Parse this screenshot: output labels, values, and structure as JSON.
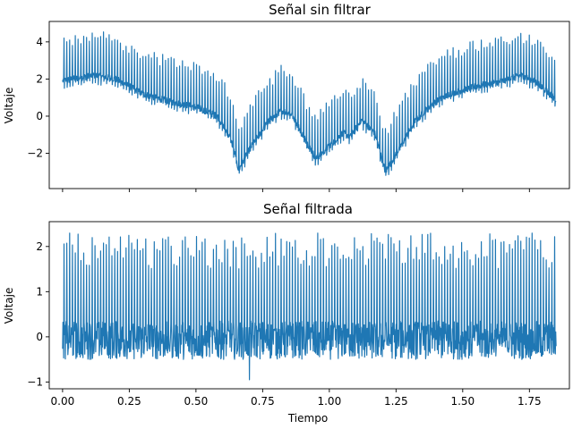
{
  "chart_data": [
    {
      "type": "line",
      "title": "Señal sin filtrar",
      "xlabel": "",
      "ylabel": "Voltaje",
      "xlim": [
        -0.05,
        1.9
      ],
      "ylim": [
        -3.9,
        5.1
      ],
      "xticks": [
        0.0,
        0.25,
        0.5,
        0.75,
        1.0,
        1.25,
        1.5,
        1.75
      ],
      "xtick_labels_visible": false,
      "yticks": [
        -2,
        0,
        2,
        4
      ],
      "ytick_labels": [
        "−2",
        "0",
        "2",
        "4"
      ],
      "color": "#1f77b4",
      "x_range": [
        0.0,
        1.85
      ],
      "baseline": [
        {
          "x": 0.0,
          "y": 1.9
        },
        {
          "x": 0.12,
          "y": 2.2
        },
        {
          "x": 0.2,
          "y": 2.0
        },
        {
          "x": 0.3,
          "y": 1.2
        },
        {
          "x": 0.4,
          "y": 0.8
        },
        {
          "x": 0.5,
          "y": 0.5
        },
        {
          "x": 0.58,
          "y": 0.0
        },
        {
          "x": 0.63,
          "y": -1.2
        },
        {
          "x": 0.66,
          "y": -2.9
        },
        {
          "x": 0.7,
          "y": -1.8
        },
        {
          "x": 0.77,
          "y": -0.3
        },
        {
          "x": 0.82,
          "y": 0.3
        },
        {
          "x": 0.86,
          "y": 0.1
        },
        {
          "x": 0.9,
          "y": -1.0
        },
        {
          "x": 0.95,
          "y": -2.3
        },
        {
          "x": 1.0,
          "y": -1.6
        },
        {
          "x": 1.05,
          "y": -0.9
        },
        {
          "x": 1.08,
          "y": -1.1
        },
        {
          "x": 1.12,
          "y": -0.2
        },
        {
          "x": 1.17,
          "y": -0.9
        },
        {
          "x": 1.21,
          "y": -3.0
        },
        {
          "x": 1.26,
          "y": -1.8
        },
        {
          "x": 1.32,
          "y": -0.3
        },
        {
          "x": 1.38,
          "y": 0.6
        },
        {
          "x": 1.45,
          "y": 1.2
        },
        {
          "x": 1.55,
          "y": 1.6
        },
        {
          "x": 1.65,
          "y": 1.9
        },
        {
          "x": 1.72,
          "y": 2.2
        },
        {
          "x": 1.78,
          "y": 1.8
        },
        {
          "x": 1.85,
          "y": 0.9
        }
      ],
      "spike_amplitude": 2.3
    },
    {
      "type": "line",
      "title": "Señal filtrada",
      "xlabel": "Tiempo",
      "ylabel": "Voltaje",
      "xlim": [
        -0.05,
        1.9
      ],
      "ylim": [
        -1.15,
        2.55
      ],
      "xticks": [
        0.0,
        0.25,
        0.5,
        0.75,
        1.0,
        1.25,
        1.5,
        1.75
      ],
      "xtick_labels": [
        "0.00",
        "0.25",
        "0.50",
        "0.75",
        "1.00",
        "1.25",
        "1.50",
        "1.75"
      ],
      "yticks": [
        -1,
        0,
        1,
        2
      ],
      "ytick_labels": [
        "−1",
        "0",
        "1",
        "2"
      ],
      "color": "#1f77b4",
      "x_range": [
        0.0,
        1.85
      ],
      "baseline_level": 0.0,
      "noise_band": [
        -0.5,
        0.35
      ],
      "spike_peak_range": [
        1.5,
        2.3
      ],
      "min_value": -0.95
    }
  ]
}
